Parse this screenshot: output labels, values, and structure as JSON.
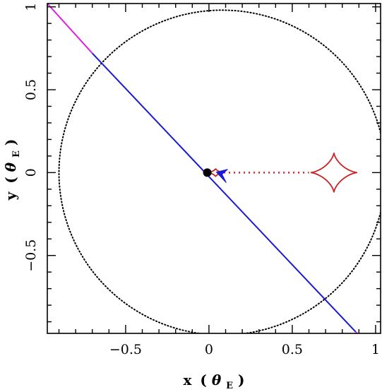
{
  "chart_data": {
    "type": "scatter",
    "title": "",
    "xlabel": {
      "main": "x",
      "open": "(",
      "sym": "θ",
      "sub": "E",
      "close": ")"
    },
    "ylabel": {
      "main": "y",
      "open": "(",
      "sym": "θ",
      "sub": "E",
      "close": ")"
    },
    "xlim": [
      -0.97,
      1.03
    ],
    "ylim": [
      -0.97,
      1.02
    ],
    "xticks": [
      {
        "v": -0.5,
        "label": "−0.5"
      },
      {
        "v": 0,
        "label": "0"
      },
      {
        "v": 0.5,
        "label": "0.5"
      },
      {
        "v": 1,
        "label": "1"
      }
    ],
    "yticks": [
      {
        "v": -0.5,
        "label": "−0.5"
      },
      {
        "v": 0,
        "label": "0"
      },
      {
        "v": 0.5,
        "label": "0.5"
      },
      {
        "v": 1,
        "label": "1"
      }
    ],
    "grid": false,
    "legend": "none",
    "colors": {
      "caustic": "#cc2222",
      "trajectory_blue": "#1a1ad6",
      "trajectory_magenta": "#e020e0",
      "curve": "#000000",
      "lens": "#000000"
    },
    "critical_curve": {
      "center": [
        0.08,
        0.0
      ],
      "rx": 0.98,
      "ry": 0.98,
      "style": "dotted",
      "color": "#000000"
    },
    "lens_mass": {
      "x": -0.01,
      "y": 0.0,
      "color": "#000000"
    },
    "caustic_primary": {
      "center": [
        0.75,
        0.0
      ],
      "ax": 0.14,
      "ay": 0.12,
      "style": "astroid",
      "color": "#cc2222"
    },
    "caustic_secondary": {
      "center": [
        0.04,
        0.0
      ],
      "ax": 0.05,
      "ay": 0.025,
      "style": "astroid",
      "color": "#cc2222"
    },
    "caustic_bridge": {
      "x": [
        0.06,
        0.6
      ],
      "y": 0.0,
      "style": "dotted",
      "color": "#cc2222"
    },
    "caustic_blue_cusp": {
      "center": [
        0.07,
        -0.01
      ],
      "color": "#1a1ad6"
    },
    "source_trajectory": {
      "segments": [
        {
          "x": [
            -0.97,
            -0.7
          ],
          "y": [
            1.02,
            0.72
          ],
          "color": "#e020e0"
        },
        {
          "x": [
            -0.7,
            0.88
          ],
          "y": [
            0.72,
            -0.96
          ],
          "color": "#1a1ad6"
        },
        {
          "x": [
            0.88,
            1.03
          ],
          "y": [
            -0.96,
            -1.12
          ],
          "color": "#e020e0"
        }
      ]
    }
  }
}
